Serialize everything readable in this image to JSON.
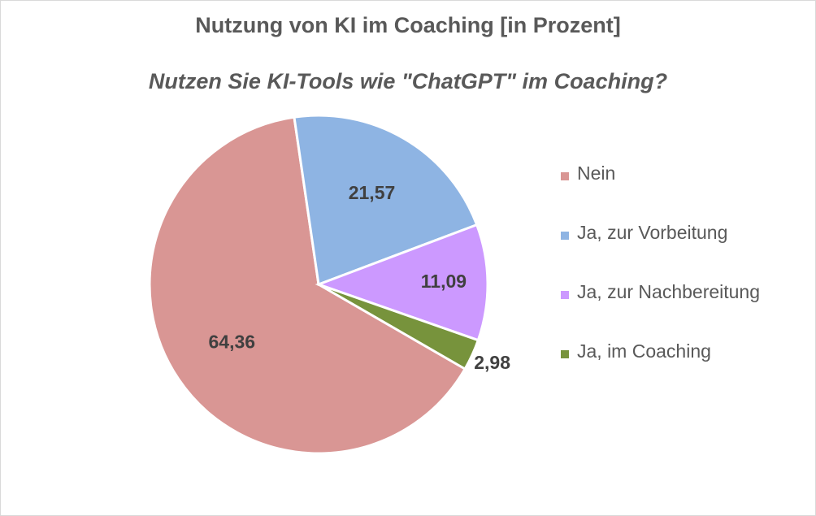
{
  "chart_data": {
    "type": "pie",
    "title": "Nutzung von KI im Coaching [in Prozent]",
    "subtitle": "Nutzen Sie KI-Tools wie \"ChatGPT\" im Coaching?",
    "categories": [
      "Nein",
      "Ja, zur Vorbeitung",
      "Ja, zur Nachbereitung",
      "Ja, im Coaching"
    ],
    "values": [
      64.36,
      21.57,
      11.09,
      2.98
    ],
    "data_labels": [
      "64,36",
      "21,57",
      "11,09",
      "2,98"
    ],
    "colors": [
      "#d99694",
      "#8eb4e3",
      "#cc99ff",
      "#77933c"
    ],
    "legend_position": "right"
  }
}
